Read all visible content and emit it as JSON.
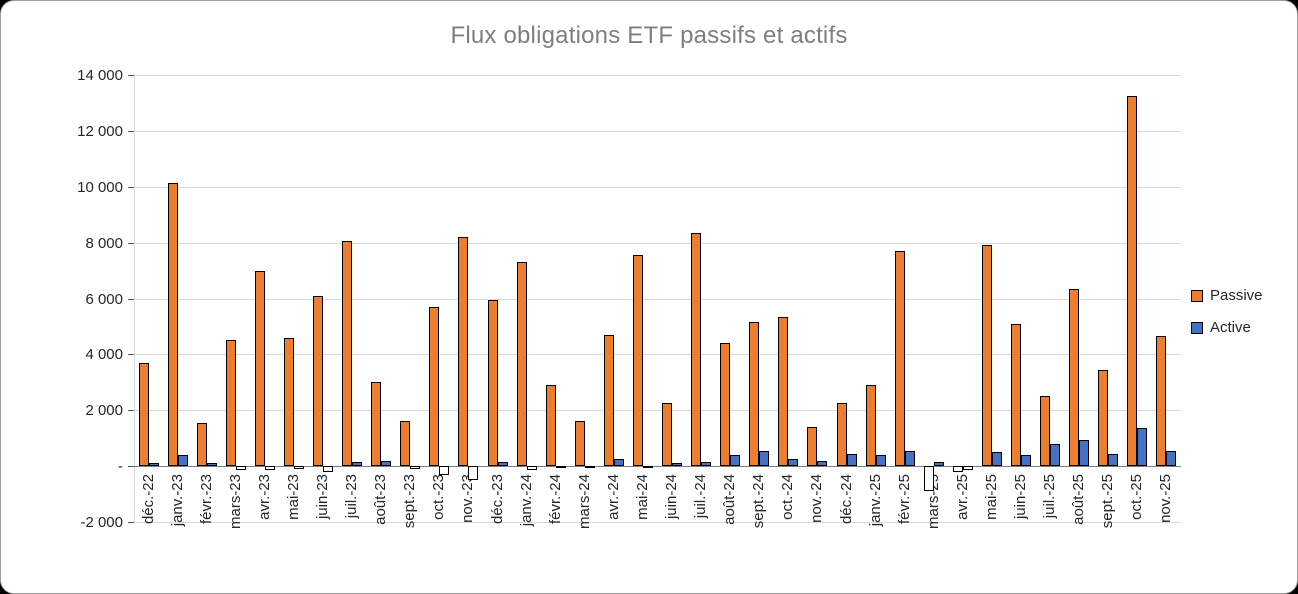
{
  "window": {
    "title": "Flux obligations ETF passifs et actifs"
  },
  "legend": {
    "items": [
      {
        "label": "Passive",
        "color": "#ED7D31"
      },
      {
        "label": "Active",
        "color": "#4472C4"
      }
    ]
  },
  "chart_data": {
    "type": "bar",
    "title": "Flux obligations ETF passifs et actifs",
    "categories": [
      "déc.-22",
      "janv.-23",
      "févr.-23",
      "mars-23",
      "avr.-23",
      "mai-23",
      "juin-23",
      "juil.-23",
      "août-23",
      "sept.-23",
      "oct.-23",
      "nov.-23",
      "déc.-23",
      "janv.-24",
      "févr.-24",
      "mars-24",
      "avr.-24",
      "mai-24",
      "juin-24",
      "juil.-24",
      "août-24",
      "sept.-24",
      "oct.-24",
      "nov.-24",
      "déc.-24",
      "janv.-25",
      "févr.-25",
      "mars-25",
      "avr.-25",
      "mai-25",
      "juin-25",
      "juil.-25",
      "août-25",
      "sept.-25",
      "oct.-25",
      "nov.-25"
    ],
    "series": [
      {
        "name": "Passive",
        "color": "#ED7D31",
        "values": [
          3700,
          10150,
          1550,
          4500,
          7000,
          4600,
          6100,
          8050,
          3000,
          1600,
          5700,
          8200,
          5950,
          7300,
          2900,
          1600,
          4700,
          7550,
          2250,
          8350,
          4400,
          5150,
          5350,
          1400,
          2250,
          2900,
          7700,
          -900,
          -200,
          7900,
          5100,
          2500,
          6350,
          3450,
          13250,
          4650
        ]
      },
      {
        "name": "Active",
        "color": "#4472C4",
        "values": [
          100,
          400,
          100,
          -150,
          -150,
          -100,
          -200,
          150,
          200,
          -100,
          -300,
          -500,
          150,
          -150,
          -80,
          -80,
          250,
          -80,
          100,
          150,
          400,
          550,
          250,
          200,
          450,
          400,
          550,
          150,
          -150,
          500,
          400,
          800,
          950,
          450,
          1350,
          550
        ]
      }
    ],
    "y_ticks": [
      {
        "label": "14 000",
        "value": 14000
      },
      {
        "label": "12 000",
        "value": 12000
      },
      {
        "label": "10 000",
        "value": 10000
      },
      {
        "label": "8 000",
        "value": 8000
      },
      {
        "label": "6 000",
        "value": 6000
      },
      {
        "label": "4 000",
        "value": 4000
      },
      {
        "label": "2 000",
        "value": 2000
      },
      {
        "label": "-",
        "value": 0
      },
      {
        "label": "-2 000",
        "value": -2000
      }
    ],
    "ylim": [
      -2000,
      14000
    ],
    "grid": true,
    "legend_position": "right",
    "negative_fill": "#FFFFFF",
    "bar_outline": "#000000"
  }
}
